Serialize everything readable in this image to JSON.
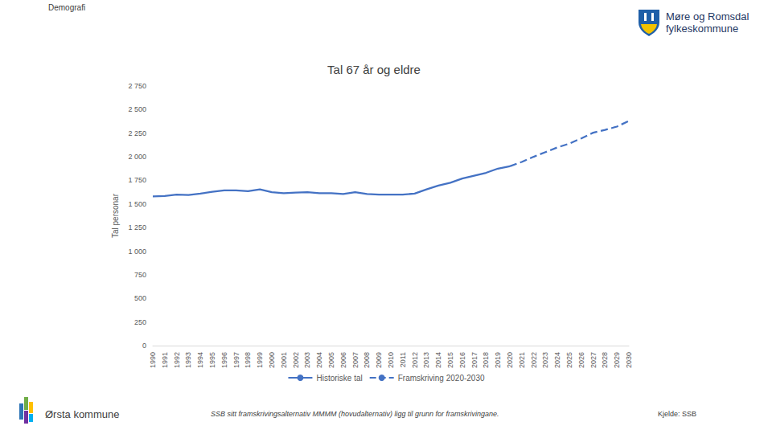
{
  "page": {
    "header": "Demografi",
    "logo": [
      "Møre og Romsdal",
      "fylkeskommune"
    ],
    "footer_left": "Ørsta kommune",
    "note": "SSB sitt framskrivingsalternativ MMMM (hovudalternativ) ligg til grunn for framskrivingane.",
    "source": "Kjelde: SSB"
  },
  "chart_data": {
    "type": "line",
    "title": "Tal 67 år og eldre",
    "y_label": "Tal personar",
    "categories": [
      "1990",
      "1991",
      "1992",
      "1993",
      "1994",
      "1995",
      "1996",
      "1997",
      "1998",
      "1999",
      "2000",
      "2001",
      "2002",
      "2003",
      "2004",
      "2005",
      "2006",
      "2007",
      "2008",
      "2009",
      "2010",
      "2011",
      "2012",
      "2013",
      "2014",
      "2015",
      "2016",
      "2017",
      "2018",
      "2019",
      "2020",
      "2021",
      "2022",
      "2023",
      "2024",
      "2025",
      "2026",
      "2027",
      "2028",
      "2029",
      "2030"
    ],
    "series": [
      {
        "name": "Historiske tal",
        "color": "#4472c4",
        "line_style": "solid",
        "values": [
          1580,
          1585,
          1600,
          1595,
          1610,
          1630,
          1645,
          1645,
          1635,
          1655,
          1625,
          1615,
          1620,
          1625,
          1615,
          1615,
          1605,
          1625,
          1605,
          1600,
          1600,
          1600,
          1610,
          1655,
          1695,
          1725,
          1770,
          1800,
          1830,
          1875,
          1900,
          null,
          null,
          null,
          null,
          null,
          null,
          null,
          null,
          null,
          null
        ]
      },
      {
        "name": "Framskriving 2020-2030",
        "color": "#4472c4",
        "line_style": "dashed",
        "values": [
          null,
          null,
          null,
          null,
          null,
          null,
          null,
          null,
          null,
          null,
          null,
          null,
          null,
          null,
          null,
          null,
          null,
          null,
          null,
          null,
          null,
          null,
          null,
          null,
          null,
          null,
          null,
          null,
          null,
          null,
          1900,
          1945,
          2000,
          2050,
          2100,
          2140,
          2195,
          2255,
          2285,
          2320,
          2380
        ]
      }
    ],
    "ylim": [
      0,
      2750
    ],
    "yticks": [
      0,
      250,
      500,
      750,
      {
        "value": 1000,
        "label": "1 000"
      },
      {
        "value": 1250,
        "label": "1 250"
      },
      {
        "value": 1500,
        "label": "1 500"
      },
      {
        "value": 1750,
        "label": "1 750"
      },
      {
        "value": 2000,
        "label": "2 000"
      },
      {
        "value": 2250,
        "label": "2 250"
      },
      {
        "value": 2500,
        "label": "2 500"
      },
      {
        "value": 2750,
        "label": "2 750"
      }
    ],
    "grid": false,
    "legend": "bottom"
  }
}
